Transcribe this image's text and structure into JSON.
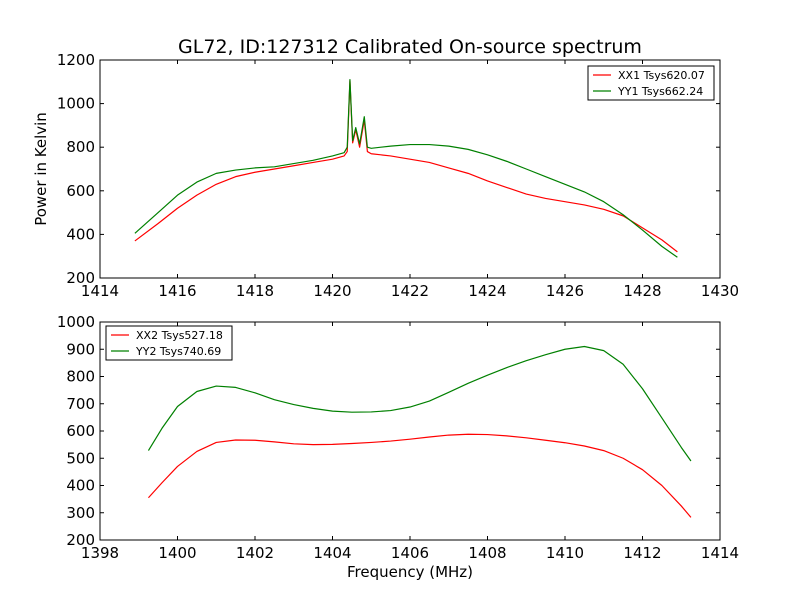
{
  "figure": {
    "title": "GL72, ID:127312 Calibrated On-source spectrum",
    "ylabel": "Power in Kelvin",
    "xlabel": "Frequency (MHz)"
  },
  "chart_data": [
    {
      "type": "line",
      "title": "GL72, ID:127312 Calibrated On-source spectrum",
      "xlabel": "",
      "ylabel": "Power in Kelvin",
      "xlim": [
        1414,
        1430
      ],
      "ylim": [
        200,
        1200
      ],
      "xticks": [
        1414,
        1416,
        1418,
        1420,
        1422,
        1424,
        1426,
        1428,
        1430
      ],
      "yticks": [
        200,
        400,
        600,
        800,
        1000,
        1200
      ],
      "grid": false,
      "legend_position": "top-right",
      "series": [
        {
          "name": "XX1 Tsys620.07",
          "color": "#ff0000",
          "points": [
            [
              1414.9,
              370
            ],
            [
              1415.5,
              450
            ],
            [
              1416.0,
              520
            ],
            [
              1416.5,
              580
            ],
            [
              1417.0,
              630
            ],
            [
              1417.5,
              665
            ],
            [
              1418.0,
              685
            ],
            [
              1418.5,
              700
            ],
            [
              1419.0,
              715
            ],
            [
              1419.5,
              730
            ],
            [
              1420.0,
              745
            ],
            [
              1420.3,
              760
            ],
            [
              1420.38,
              780
            ],
            [
              1420.45,
              1105
            ],
            [
              1420.52,
              820
            ],
            [
              1420.6,
              880
            ],
            [
              1420.7,
              800
            ],
            [
              1420.82,
              925
            ],
            [
              1420.9,
              780
            ],
            [
              1421.0,
              770
            ],
            [
              1421.5,
              760
            ],
            [
              1422.0,
              745
            ],
            [
              1422.5,
              730
            ],
            [
              1423.0,
              705
            ],
            [
              1423.5,
              680
            ],
            [
              1424.0,
              645
            ],
            [
              1424.5,
              615
            ],
            [
              1425.0,
              585
            ],
            [
              1425.5,
              565
            ],
            [
              1426.0,
              550
            ],
            [
              1426.5,
              535
            ],
            [
              1427.0,
              515
            ],
            [
              1427.5,
              485
            ],
            [
              1428.0,
              430
            ],
            [
              1428.5,
              375
            ],
            [
              1428.9,
              320
            ]
          ]
        },
        {
          "name": "YY1 Tsys662.24",
          "color": "#008000",
          "points": [
            [
              1414.9,
              405
            ],
            [
              1415.5,
              500
            ],
            [
              1416.0,
              580
            ],
            [
              1416.5,
              640
            ],
            [
              1417.0,
              680
            ],
            [
              1417.5,
              695
            ],
            [
              1418.0,
              705
            ],
            [
              1418.5,
              710
            ],
            [
              1419.0,
              725
            ],
            [
              1419.5,
              740
            ],
            [
              1420.0,
              760
            ],
            [
              1420.3,
              775
            ],
            [
              1420.38,
              800
            ],
            [
              1420.45,
              1110
            ],
            [
              1420.52,
              830
            ],
            [
              1420.6,
              890
            ],
            [
              1420.7,
              815
            ],
            [
              1420.82,
              940
            ],
            [
              1420.9,
              800
            ],
            [
              1421.0,
              795
            ],
            [
              1421.5,
              805
            ],
            [
              1422.0,
              812
            ],
            [
              1422.5,
              812
            ],
            [
              1423.0,
              805
            ],
            [
              1423.5,
              790
            ],
            [
              1424.0,
              765
            ],
            [
              1424.5,
              735
            ],
            [
              1425.0,
              700
            ],
            [
              1425.5,
              665
            ],
            [
              1426.0,
              630
            ],
            [
              1426.5,
              595
            ],
            [
              1427.0,
              550
            ],
            [
              1427.5,
              490
            ],
            [
              1428.0,
              420
            ],
            [
              1428.5,
              345
            ],
            [
              1428.9,
              295
            ]
          ]
        }
      ]
    },
    {
      "type": "line",
      "title": "",
      "xlabel": "Frequency (MHz)",
      "ylabel": "",
      "xlim": [
        1398,
        1414
      ],
      "ylim": [
        200,
        1000
      ],
      "xticks": [
        1398,
        1400,
        1402,
        1404,
        1406,
        1408,
        1410,
        1412,
        1414
      ],
      "yticks": [
        200,
        300,
        400,
        500,
        600,
        700,
        800,
        900,
        1000
      ],
      "grid": false,
      "legend_position": "top-left",
      "series": [
        {
          "name": "XX2 Tsys527.18",
          "color": "#ff0000",
          "points": [
            [
              1399.25,
              355
            ],
            [
              1399.6,
              410
            ],
            [
              1400.0,
              470
            ],
            [
              1400.5,
              525
            ],
            [
              1401.0,
              558
            ],
            [
              1401.5,
              567
            ],
            [
              1402.0,
              566
            ],
            [
              1402.5,
              560
            ],
            [
              1403.0,
              553
            ],
            [
              1403.5,
              550
            ],
            [
              1404.0,
              551
            ],
            [
              1404.5,
              554
            ],
            [
              1405.0,
              558
            ],
            [
              1405.5,
              563
            ],
            [
              1406.0,
              570
            ],
            [
              1406.5,
              578
            ],
            [
              1407.0,
              585
            ],
            [
              1407.5,
              588
            ],
            [
              1408.0,
              587
            ],
            [
              1408.5,
              582
            ],
            [
              1409.0,
              575
            ],
            [
              1409.5,
              566
            ],
            [
              1410.0,
              557
            ],
            [
              1410.5,
              545
            ],
            [
              1411.0,
              528
            ],
            [
              1411.5,
              500
            ],
            [
              1412.0,
              458
            ],
            [
              1412.5,
              400
            ],
            [
              1413.0,
              325
            ],
            [
              1413.25,
              283
            ]
          ]
        },
        {
          "name": "YY2 Tsys740.69",
          "color": "#008000",
          "points": [
            [
              1399.25,
              528
            ],
            [
              1399.6,
              610
            ],
            [
              1400.0,
              690
            ],
            [
              1400.5,
              745
            ],
            [
              1401.0,
              765
            ],
            [
              1401.5,
              760
            ],
            [
              1402.0,
              740
            ],
            [
              1402.5,
              715
            ],
            [
              1403.0,
              697
            ],
            [
              1403.5,
              683
            ],
            [
              1404.0,
              673
            ],
            [
              1404.5,
              669
            ],
            [
              1405.0,
              670
            ],
            [
              1405.5,
              675
            ],
            [
              1406.0,
              688
            ],
            [
              1406.5,
              710
            ],
            [
              1407.0,
              742
            ],
            [
              1407.5,
              775
            ],
            [
              1408.0,
              805
            ],
            [
              1408.5,
              833
            ],
            [
              1409.0,
              858
            ],
            [
              1409.5,
              880
            ],
            [
              1410.0,
              900
            ],
            [
              1410.5,
              910
            ],
            [
              1411.0,
              895
            ],
            [
              1411.5,
              845
            ],
            [
              1412.0,
              755
            ],
            [
              1412.5,
              648
            ],
            [
              1413.0,
              540
            ],
            [
              1413.25,
              490
            ]
          ]
        }
      ]
    }
  ]
}
